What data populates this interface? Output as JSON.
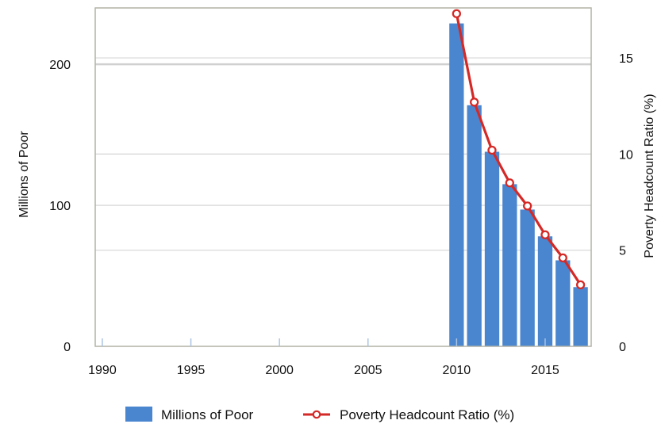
{
  "chart_data": {
    "type": "bar",
    "x": [
      2010,
      2011,
      2012,
      2013,
      2014,
      2015,
      2016,
      2017
    ],
    "series": [
      {
        "name": "Millions of Poor",
        "type": "bar",
        "axis": "left",
        "color": "#4a86cf",
        "values": [
          229,
          171,
          138,
          115,
          97,
          78,
          61,
          42
        ]
      },
      {
        "name": "Poverty Headcount Ratio (%)",
        "type": "line",
        "axis": "right",
        "color": "#d42a27",
        "values": [
          17.3,
          12.7,
          10.2,
          8.5,
          7.3,
          5.8,
          4.6,
          3.2
        ]
      }
    ],
    "xlabel": "",
    "ylabel": "Millions of Poor",
    "y2label": "Poverty Headcount Ratio (%)",
    "xlim": [
      1989.6,
      2017.6
    ],
    "ylim": [
      0,
      240
    ],
    "y2lim": [
      0,
      17.6
    ],
    "xticks": [
      1990,
      1995,
      2000,
      2005,
      2010,
      2015
    ],
    "yticks": [
      0,
      100,
      200
    ],
    "y2ticks": [
      0,
      5,
      10,
      15
    ],
    "grid": true,
    "legend": "bottom"
  }
}
